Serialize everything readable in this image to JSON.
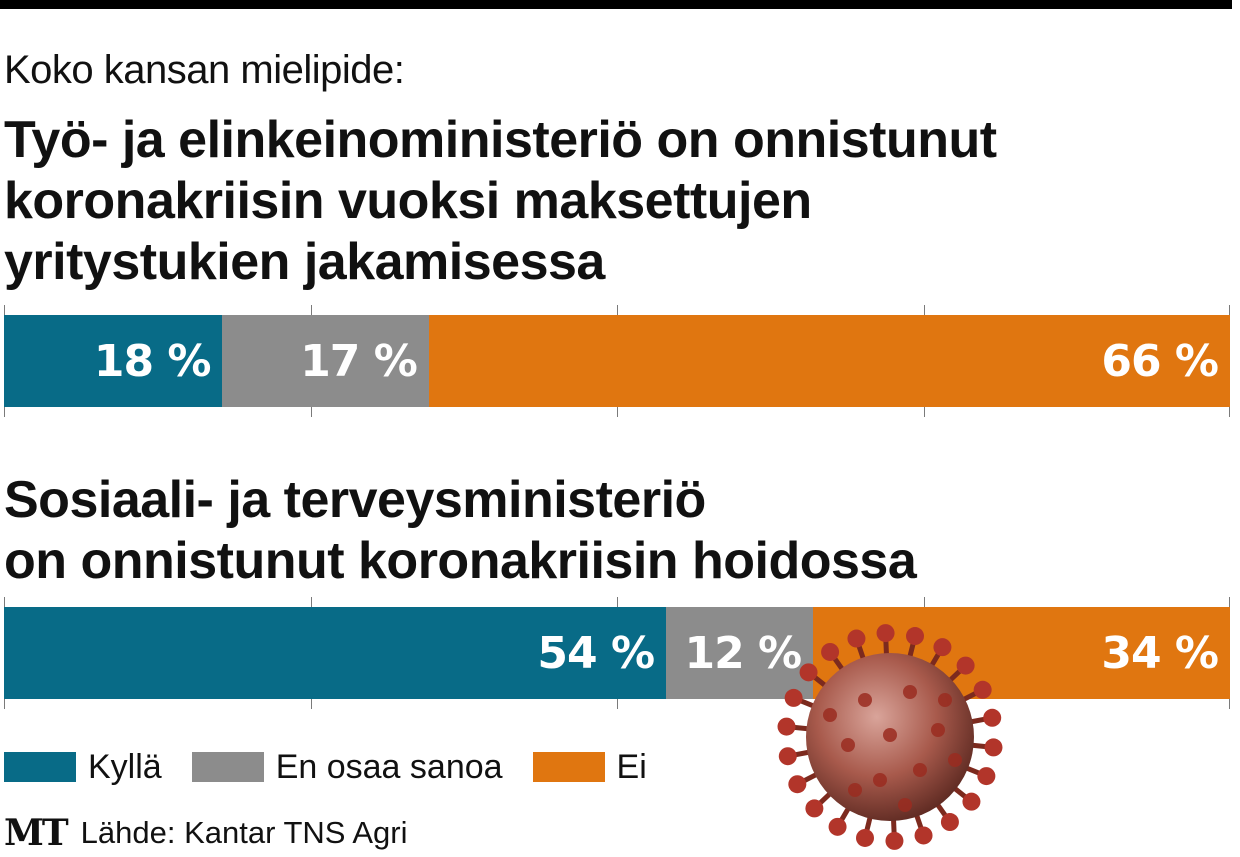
{
  "overline": "Koko kansan mielipide:",
  "colors": {
    "kylla": "#086b87",
    "eos": "#8c8c8c",
    "ei": "#e07610"
  },
  "chart_data": [
    {
      "type": "bar",
      "orientation": "horizontal-stacked",
      "title": "Työ- ja elinkeinoministeriö on onnistunut koronakriisin vuoksi maksettujen yritystukien jakamisessa",
      "title_lines": [
        "Työ- ja elinkeinoministeriö on onnistunut",
        "koronakriisin vuoksi maksettujen",
        "yritystukien jakamisessa"
      ],
      "series": [
        {
          "name": "Kyllä",
          "value": 18,
          "label": "18 %"
        },
        {
          "name": "En osaa sanoa",
          "value": 17,
          "label": "17 %"
        },
        {
          "name": "Ei",
          "value": 66,
          "label": "66 %"
        }
      ],
      "xlim": [
        0,
        100
      ],
      "grid": true
    },
    {
      "type": "bar",
      "orientation": "horizontal-stacked",
      "title": "Sosiaali- ja terveysministeriö on onnistunut koronakriisin hoidossa",
      "title_lines": [
        "Sosiaali- ja terveysministeriö",
        "on onnistunut koronakriisin hoidossa"
      ],
      "series": [
        {
          "name": "Kyllä",
          "value": 54,
          "label": "54 %"
        },
        {
          "name": "En osaa sanoa",
          "value": 12,
          "label": "12 %"
        },
        {
          "name": "Ei",
          "value": 34,
          "label": "34 %"
        }
      ],
      "xlim": [
        0,
        100
      ],
      "grid": true
    }
  ],
  "legend": [
    {
      "label": "Kyllä",
      "color": "#086b87"
    },
    {
      "label": "En osaa sanoa",
      "color": "#8c8c8c"
    },
    {
      "label": "Ei",
      "color": "#e07610"
    }
  ],
  "source": {
    "logo": "MT",
    "text": "Lähde: Kantar TNS Agri"
  },
  "decoration": {
    "icon": "coronavirus-icon"
  }
}
